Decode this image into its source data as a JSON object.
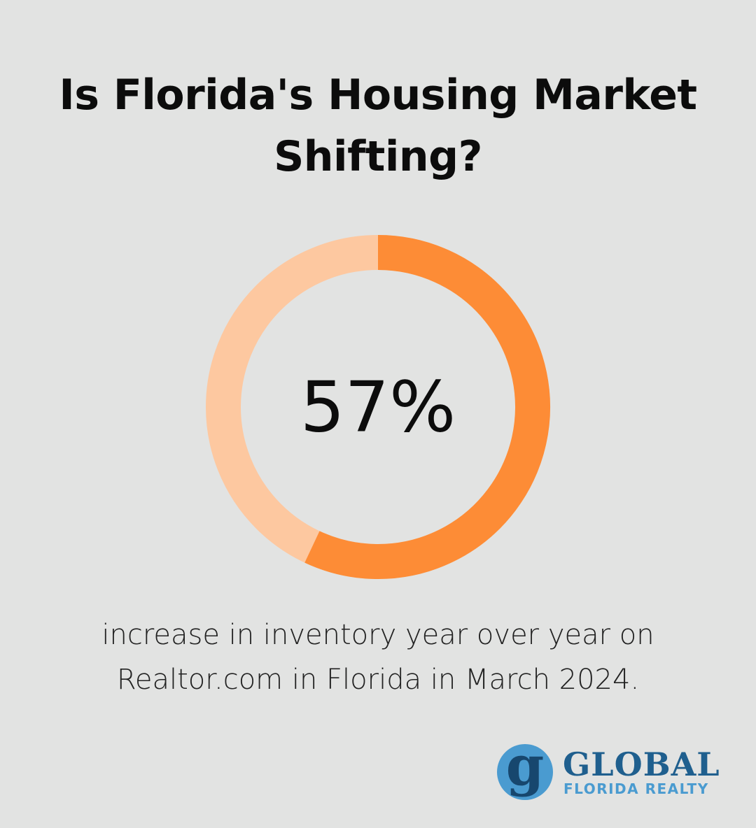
{
  "title_lines": [
    "Is Florida's Housing Market",
    "Shifting?"
  ],
  "caption_lines": [
    "increase in inventory year over year on",
    "Realtor.com in Florida in March 2024."
  ],
  "brand": {
    "mark_letter": "g",
    "name": "GLOBAL",
    "subtitle": "FLORIDA REALTY",
    "primary_color": "#1f5f8e",
    "accent_color": "#4a9bd0"
  },
  "colors": {
    "background": "#e2e3e2",
    "donut_fill": "#fd8c36",
    "donut_track": "#fdc8a0"
  },
  "chart_data": {
    "type": "pie",
    "variant": "donut",
    "value_percent": 57,
    "value_label": "57%",
    "start_angle": "top",
    "direction": "clockwise"
  }
}
